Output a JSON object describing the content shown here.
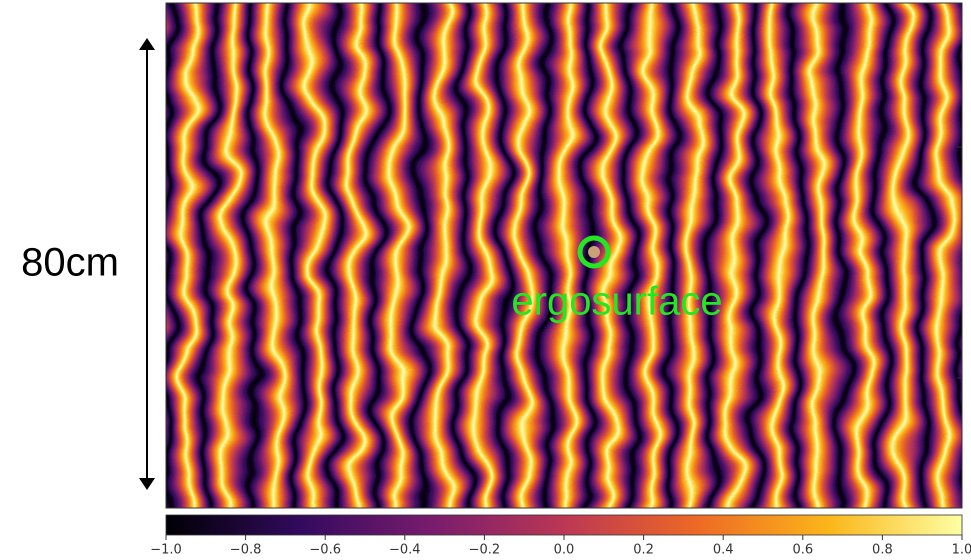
{
  "chart_data": {
    "type": "heatmap",
    "colormap": [
      "#000004",
      "#320a5e",
      "#781c6d",
      "#bc3754",
      "#ed6925",
      "#fbb61a",
      "#fcffa4"
    ],
    "clim": [
      -1.0,
      1.0
    ],
    "cticks": [
      {
        "value": -1.0,
        "label": "−1.0"
      },
      {
        "value": -0.8,
        "label": "−0.8"
      },
      {
        "value": -0.6,
        "label": "−0.6"
      },
      {
        "value": -0.4,
        "label": "−0.4"
      },
      {
        "value": -0.2,
        "label": "−0.2"
      },
      {
        "value": 0.0,
        "label": "0.0"
      },
      {
        "value": 0.2,
        "label": "0.2"
      },
      {
        "value": 0.4,
        "label": "0.4"
      },
      {
        "value": 0.6,
        "label": "0.6"
      },
      {
        "value": 0.8,
        "label": "0.8"
      },
      {
        "value": 1.0,
        "label": "1.0"
      }
    ],
    "scale_label": "80cm",
    "annotation": "ergosurface",
    "annotation_color": "#22e822"
  }
}
